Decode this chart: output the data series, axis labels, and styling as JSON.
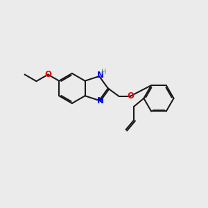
{
  "background_color": "#EBEBEB",
  "bond_color": "#1a1a1a",
  "N_color": "#0000EE",
  "O_color": "#EE0000",
  "H_color": "#4A8A8A",
  "line_width": 1.5,
  "dbo": 0.018,
  "figsize": [
    3.0,
    3.0
  ],
  "dpi": 100,
  "xlim": [
    -1.55,
    1.45
  ],
  "ylim": [
    -1.3,
    1.0
  ]
}
